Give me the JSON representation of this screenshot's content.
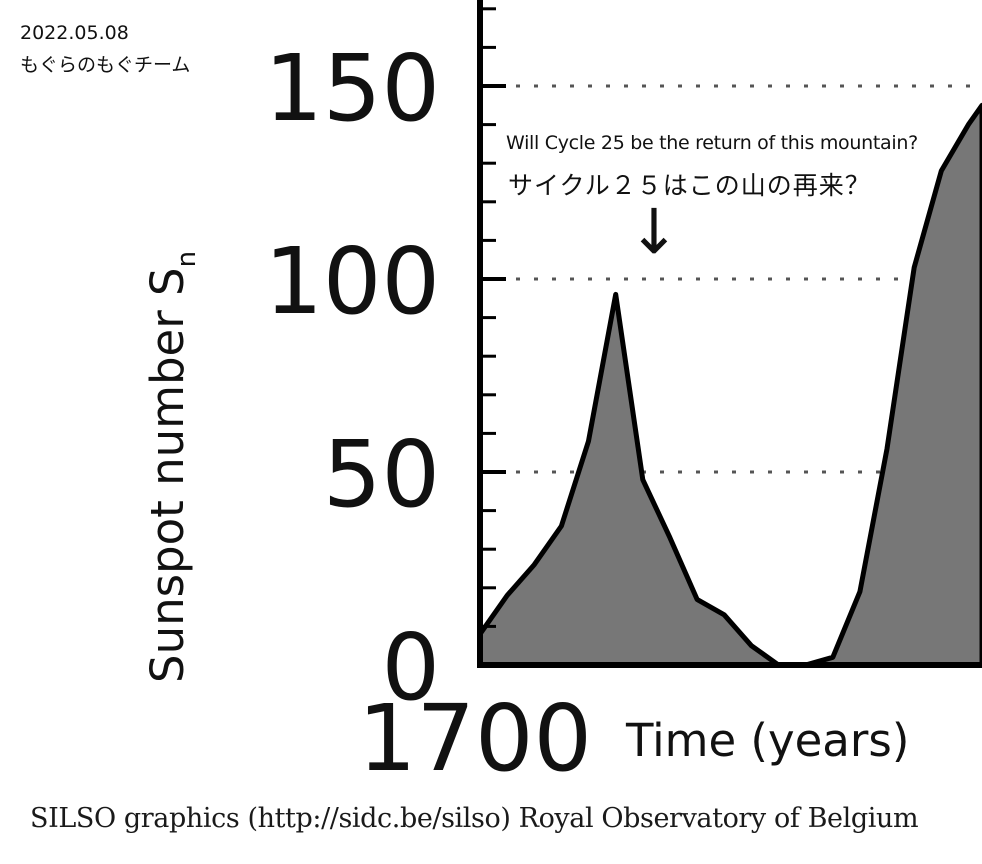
{
  "stamp": {
    "date": "2022.05.08",
    "team": "もぐらのもぐチーム"
  },
  "annotation": {
    "english": "Will Cycle 25 be the return of this mountain?",
    "japanese": "サイクル２５はこの山の再来？",
    "arrow": "↓"
  },
  "credit": "SILSO graphics (http://sidc.be/silso)  Royal Observatory of Belgium",
  "colors": {
    "fill": "#777777",
    "line": "#000000",
    "grid": "#555555"
  },
  "chart_data": {
    "type": "area",
    "ylabel": "Sunspot number S",
    "ylabel_subscript": "n",
    "xlabel": "Time (years)",
    "ylim": [
      0,
      170
    ],
    "yticks": [
      0,
      50,
      100,
      150
    ],
    "ytick_labels": [
      "0",
      "50",
      "100",
      "150"
    ],
    "xtick_labels": [
      "1700"
    ],
    "xlim": [
      1700,
      1718.5
    ],
    "grid": "dashed horizontal at 50, 100, 150",
    "series": [
      {
        "x": [
          1700,
          1701,
          1702,
          1703,
          1704,
          1705,
          1706,
          1707,
          1708,
          1709,
          1710,
          1711,
          1712,
          1713,
          1714,
          1715,
          1716,
          1717,
          1718,
          1718.5
        ],
        "values": [
          8,
          18,
          26,
          36,
          58,
          96,
          48,
          33,
          17,
          13,
          5,
          0,
          0,
          2,
          19,
          56,
          103,
          128,
          140,
          145
        ]
      }
    ]
  }
}
